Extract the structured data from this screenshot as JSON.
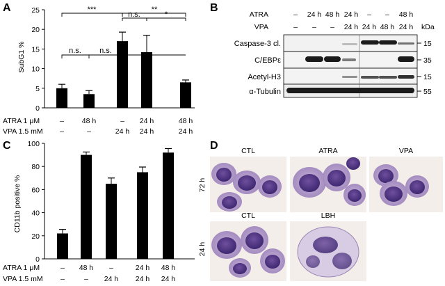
{
  "panels": {
    "A": {
      "label": "A",
      "ylabel": "SubG1 %",
      "row1_label": "ATRA 1 μM",
      "row2_label": "VPA 1.5 mM",
      "row1": [
        "–",
        "48 h",
        "–",
        "24 h",
        "48 h"
      ],
      "row2": [
        "–",
        "–",
        "24 h",
        "24 h",
        "24 h"
      ],
      "significance": {
        "top_left": "***",
        "mid_left": "n.s.",
        "mid_right": "*",
        "top_right": "**",
        "low_left": "n.s.",
        "low_mid": "n.s."
      }
    },
    "B": {
      "label": "B",
      "atra_label": "ATRA",
      "vpa_label": "VPA",
      "atra": [
        "–",
        "24 h",
        "48 h",
        "24 h",
        "–",
        "–",
        "48 h"
      ],
      "vpa": [
        "–",
        "–",
        "–",
        "24 h",
        "24 h",
        "48 h",
        "24 h"
      ],
      "kda_label": "kDa",
      "rows": [
        {
          "name": "Caspase-3 cl.",
          "kda": "15"
        },
        {
          "name": "C/EBPε",
          "kda": "35"
        },
        {
          "name": "Acetyl-H3",
          "kda": "15"
        },
        {
          "name": "α-Tubulin",
          "kda": "55"
        }
      ]
    },
    "C": {
      "label": "C",
      "ylabel": "CD11b positive %",
      "row1_label": "ATRA 1 μM",
      "row2_label": "VPA 1.5 mM",
      "row1": [
        "–",
        "48 h",
        "–",
        "24 h",
        "48 h"
      ],
      "row2": [
        "–",
        "–",
        "24 h",
        "24 h",
        "24 h"
      ]
    },
    "D": {
      "label": "D",
      "row_labels": [
        "72 h",
        "24 h"
      ],
      "top_titles": [
        "CTL",
        "ATRA",
        "VPA"
      ],
      "bottom_titles": [
        "CTL",
        "LBH"
      ]
    }
  },
  "chart_data": [
    {
      "type": "bar",
      "panel": "A",
      "ylabel": "SubG1 %",
      "ylim": [
        0,
        25
      ],
      "yticks": [
        0,
        5,
        10,
        15,
        20,
        25
      ],
      "categories": [
        "–/–",
        "48 h/–",
        "–/24 h",
        "24 h/24 h",
        "48 h/24 h"
      ],
      "values": [
        5,
        3.5,
        17,
        14.2,
        6.5
      ],
      "errors": [
        1,
        0.9,
        2.3,
        4.3,
        0.6
      ]
    },
    {
      "type": "bar",
      "panel": "C",
      "ylabel": "CD11b positive %",
      "ylim": [
        0,
        100
      ],
      "yticks": [
        0,
        20,
        40,
        60,
        80,
        100
      ],
      "categories": [
        "–/–",
        "48 h/–",
        "–/24 h",
        "24 h/24 h",
        "48 h/24 h"
      ],
      "values": [
        22,
        90,
        65,
        75,
        92
      ],
      "errors": [
        3.5,
        2.5,
        5,
        4.5,
        3.5
      ]
    }
  ]
}
